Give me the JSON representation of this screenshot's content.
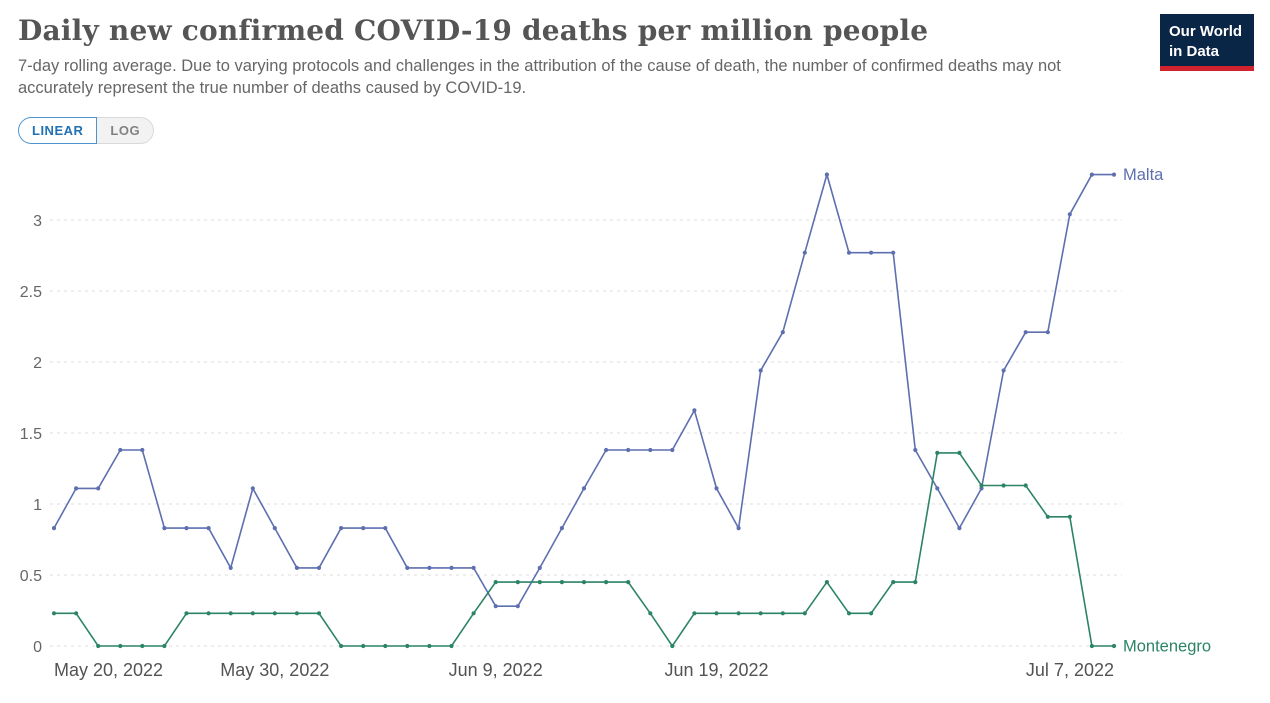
{
  "header": {
    "title": "Daily new confirmed COVID-19 deaths per million people",
    "subtitle": "7-day rolling average. Due to varying protocols and challenges in the attribution of the cause of death, the number of confirmed deaths may not accurately represent the true number of deaths caused by COVID-19."
  },
  "logo": {
    "line1": "Our World",
    "line2": "in Data",
    "bg_color": "#0a2647",
    "accent_color": "#d0232e"
  },
  "toggle": {
    "linear_label": "LINEAR",
    "log_label": "LOG",
    "active": "LINEAR",
    "active_color": "#2271b3"
  },
  "chart_data": {
    "type": "line",
    "title": "Daily new confirmed COVID-19 deaths per million people",
    "xlabel": "",
    "ylabel": "",
    "ylim": [
      0,
      3.5
    ],
    "yticks": [
      0,
      0.5,
      1,
      1.5,
      2,
      2.5,
      3
    ],
    "grid": "dashed-horizontal",
    "legend_position": "line-end-labels",
    "dates": [
      "2022-05-20",
      "2022-05-21",
      "2022-05-22",
      "2022-05-23",
      "2022-05-24",
      "2022-05-25",
      "2022-05-26",
      "2022-05-27",
      "2022-05-28",
      "2022-05-29",
      "2022-05-30",
      "2022-05-31",
      "2022-06-01",
      "2022-06-02",
      "2022-06-03",
      "2022-06-04",
      "2022-06-05",
      "2022-06-06",
      "2022-06-07",
      "2022-06-08",
      "2022-06-09",
      "2022-06-10",
      "2022-06-11",
      "2022-06-12",
      "2022-06-13",
      "2022-06-14",
      "2022-06-15",
      "2022-06-16",
      "2022-06-17",
      "2022-06-18",
      "2022-06-19",
      "2022-06-20",
      "2022-06-21",
      "2022-06-22",
      "2022-06-23",
      "2022-06-24",
      "2022-06-25",
      "2022-06-26",
      "2022-06-27",
      "2022-06-28",
      "2022-06-29",
      "2022-06-30",
      "2022-07-01",
      "2022-07-02",
      "2022-07-03",
      "2022-07-04",
      "2022-07-05",
      "2022-07-06",
      "2022-07-07"
    ],
    "xticks": [
      {
        "index": 0,
        "label": "May 20, 2022"
      },
      {
        "index": 10,
        "label": "May 30, 2022"
      },
      {
        "index": 20,
        "label": "Jun 9, 2022"
      },
      {
        "index": 30,
        "label": "Jun 19, 2022"
      },
      {
        "index": 48,
        "label": "Jul 7, 2022"
      }
    ],
    "series": [
      {
        "name": "Malta",
        "color": "#5e6fb0",
        "values": [
          0.83,
          1.11,
          1.11,
          1.38,
          1.38,
          0.83,
          0.83,
          0.83,
          0.55,
          1.11,
          0.83,
          0.55,
          0.55,
          0.83,
          0.83,
          0.83,
          0.55,
          0.55,
          0.55,
          0.55,
          0.28,
          0.28,
          0.55,
          0.83,
          1.11,
          1.38,
          1.38,
          1.38,
          1.38,
          1.66,
          1.11,
          0.83,
          1.94,
          2.21,
          2.77,
          3.32,
          2.77,
          2.77,
          2.77,
          1.38,
          1.11,
          0.83,
          1.11,
          1.94,
          2.21,
          2.21,
          3.04,
          3.32,
          3.32
        ]
      },
      {
        "name": "Montenegro",
        "color": "#2c8465",
        "values": [
          0.23,
          0.23,
          0,
          0,
          0,
          0,
          0.23,
          0.23,
          0.23,
          0.23,
          0.23,
          0.23,
          0.23,
          0,
          0,
          0,
          0,
          0,
          0,
          0.23,
          0.45,
          0.45,
          0.45,
          0.45,
          0.45,
          0.45,
          0.45,
          0.23,
          0,
          0.23,
          0.23,
          0.23,
          0.23,
          0.23,
          0.23,
          0.45,
          0.23,
          0.23,
          0.45,
          0.45,
          1.36,
          1.36,
          1.13,
          1.13,
          1.13,
          0.91,
          0.91,
          0,
          0
        ]
      }
    ]
  }
}
